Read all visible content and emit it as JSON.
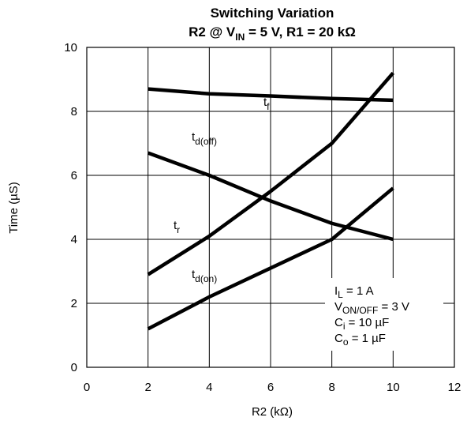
{
  "chart_data": {
    "type": "line",
    "title": {
      "line1": "Switching Variation",
      "line2": {
        "a": "R2 @ V",
        "a_sub": "IN",
        "b": " = 5 V, R1 = 20 kΩ"
      }
    },
    "xlabel": "R2 (kΩ)",
    "ylabel": "Time  (µS)",
    "xlim": [
      0,
      12
    ],
    "ylim": [
      0,
      10
    ],
    "x_ticks": [
      "0",
      "2",
      "4",
      "6",
      "8",
      "10",
      "12"
    ],
    "y_ticks": [
      "0",
      "2",
      "4",
      "6",
      "8",
      "10"
    ],
    "grid": true,
    "series": [
      {
        "name": "t_f",
        "label_main": "t",
        "label_sub": "f",
        "x": [
          2,
          4,
          6,
          8,
          10
        ],
        "y": [
          8.7,
          8.55,
          8.48,
          8.4,
          8.35
        ]
      },
      {
        "name": "t_d(off)",
        "label_main": "t",
        "label_sub": "d(off)",
        "x": [
          2,
          4,
          6,
          8,
          10
        ],
        "y": [
          6.7,
          6.0,
          5.2,
          4.5,
          4.0
        ]
      },
      {
        "name": "t_r",
        "label_main": "t",
        "label_sub": "r",
        "x": [
          2,
          4,
          6,
          8,
          10
        ],
        "y": [
          2.9,
          4.1,
          5.5,
          7.0,
          9.2
        ]
      },
      {
        "name": "t_d(on)",
        "label_main": "t",
        "label_sub": "d(on)",
        "x": [
          2,
          4,
          6,
          8,
          10
        ],
        "y": [
          1.2,
          2.2,
          3.1,
          4.0,
          5.6
        ]
      }
    ],
    "conditions": [
      {
        "main": "I",
        "sub": "L",
        "rest": " = 1 A"
      },
      {
        "main": "V",
        "sub": "ON/OFF",
        "rest": " = 3 V"
      },
      {
        "main": "C",
        "sub": "i",
        "rest": " = 10 µF"
      },
      {
        "main": "C",
        "sub": "o",
        "rest": " = 1 µF"
      }
    ],
    "line_color": "#000000"
  }
}
